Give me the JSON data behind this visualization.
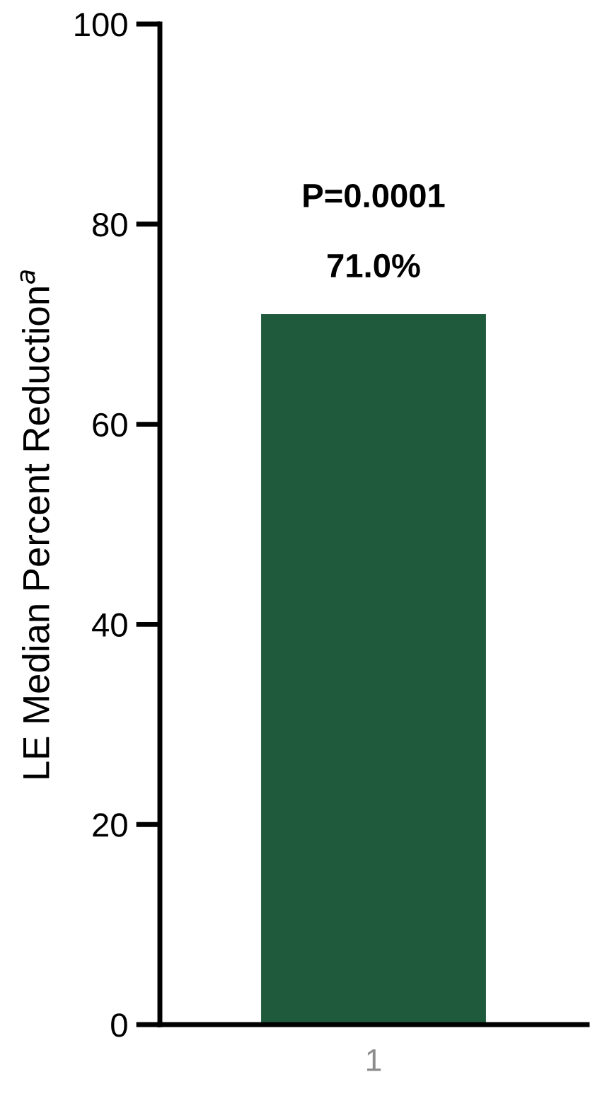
{
  "chart_data": {
    "type": "bar",
    "ylabel": "LE Median Percent Reduction$^{a}$",
    "categories": [
      "1"
    ],
    "values": [
      71.0
    ],
    "color": "#1f5a3d",
    "value_labels": [
      "71.0%"
    ],
    "annotations": [
      "P=0.0001"
    ],
    "ylim": [
      0,
      100
    ],
    "yticks": [
      0,
      20,
      40,
      60,
      80,
      100
    ],
    "grid": false,
    "legend": false
  }
}
